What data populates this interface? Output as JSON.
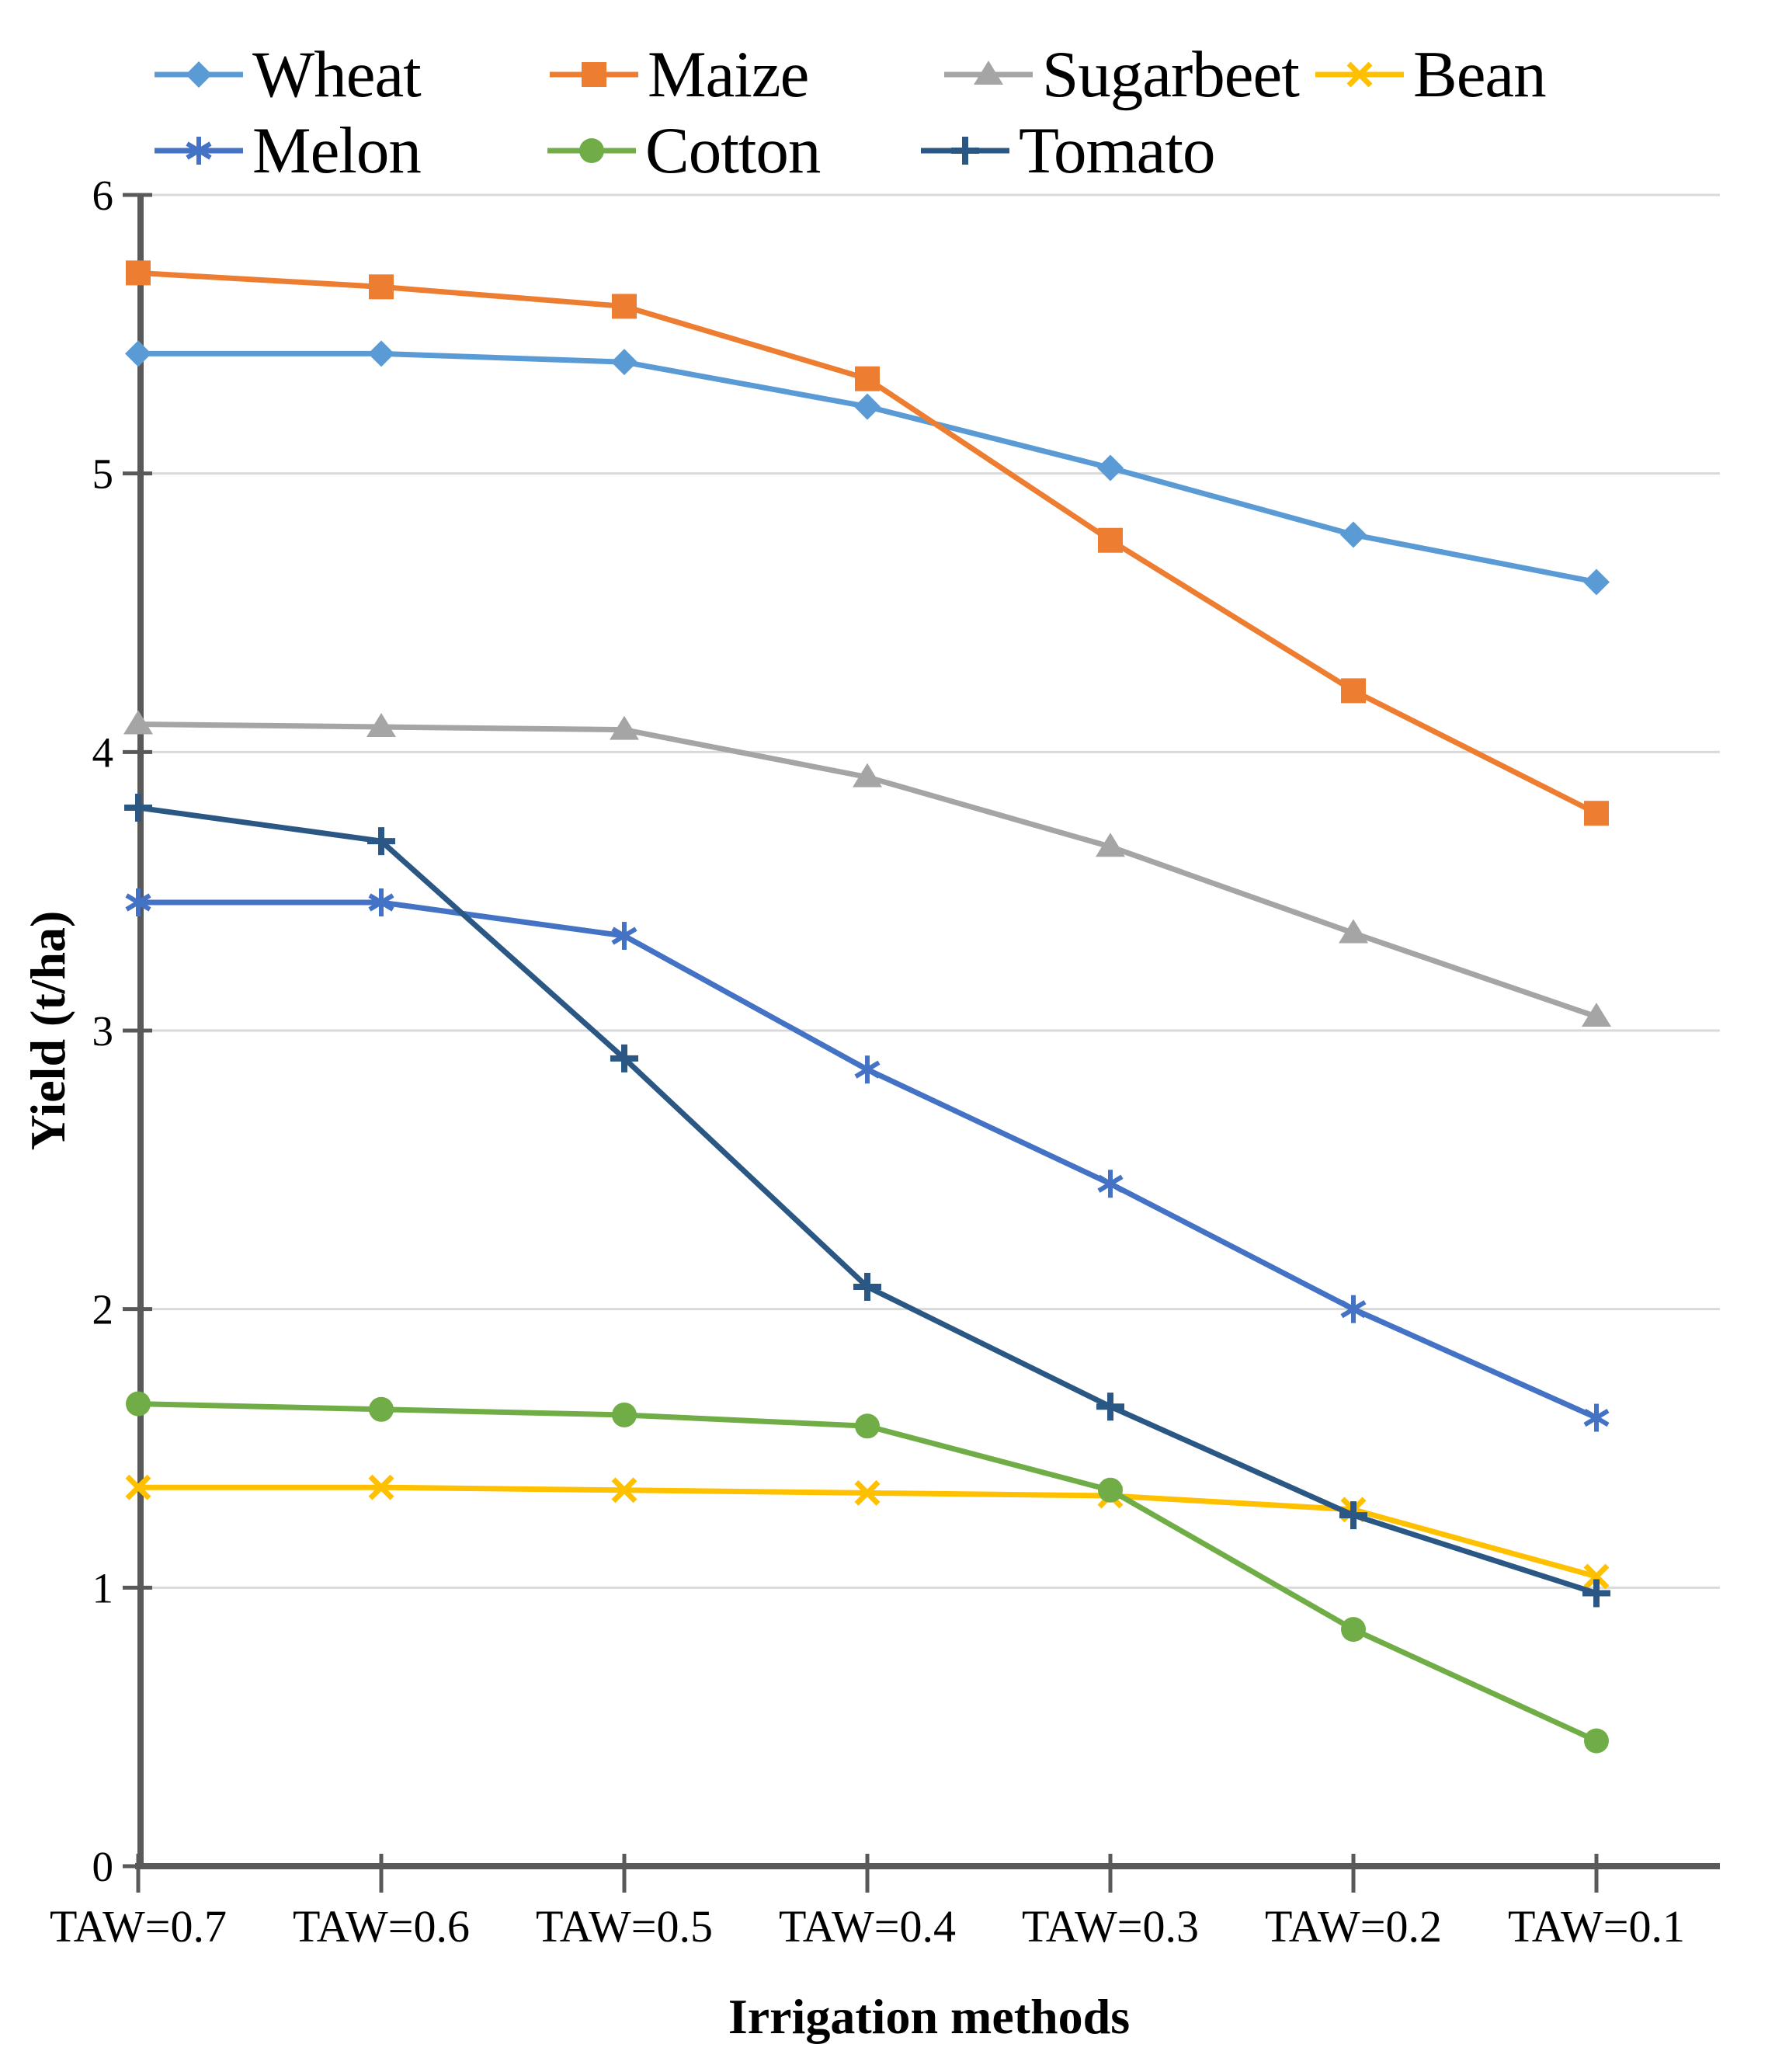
{
  "page": {
    "background": "#FFFFFF"
  },
  "chart_data": {
    "type": "line",
    "title": "",
    "xlabel": "Irrigation methods",
    "ylabel": "Yield (t/ha)",
    "categories": [
      "TAW=0.7",
      "TAW=0.6",
      "TAW=0.5",
      "TAW=0.4",
      "TAW=0.3",
      "TAW=0.2",
      "TAW=0.1"
    ],
    "ylim": [
      0,
      6
    ],
    "ytick_labels": [
      "0",
      "1",
      "2",
      "3",
      "4",
      "5",
      "6"
    ],
    "grid": "horizontal",
    "legend_position": "top-left-two-rows",
    "legend_rows": [
      [
        "Wheat",
        "Maize",
        "Sugarbeet",
        "Bean"
      ],
      [
        "Melon",
        "Cotton",
        "Tomato"
      ]
    ],
    "series": [
      {
        "name": "Wheat",
        "color": "#5B9BD5",
        "marker": "diamond",
        "values": [
          5.43,
          5.43,
          5.4,
          5.24,
          5.02,
          4.78,
          4.61
        ]
      },
      {
        "name": "Maize",
        "color": "#ED7D31",
        "marker": "square",
        "values": [
          5.72,
          5.67,
          5.6,
          5.34,
          4.76,
          4.22,
          3.78
        ]
      },
      {
        "name": "Sugarbeet",
        "color": "#A5A5A5",
        "marker": "triangle",
        "values": [
          4.1,
          4.09,
          4.08,
          3.91,
          3.66,
          3.35,
          3.05
        ]
      },
      {
        "name": "Bean",
        "color": "#FFC000",
        "marker": "x",
        "values": [
          1.36,
          1.36,
          1.35,
          1.34,
          1.33,
          1.28,
          1.04
        ]
      },
      {
        "name": "Melon",
        "color": "#4472C4",
        "marker": "asterisk",
        "values": [
          3.46,
          3.46,
          3.34,
          2.86,
          2.45,
          2.0,
          1.61
        ]
      },
      {
        "name": "Cotton",
        "color": "#70AD47",
        "marker": "circle",
        "values": [
          1.66,
          1.64,
          1.62,
          1.58,
          1.35,
          0.85,
          0.45
        ]
      },
      {
        "name": "Tomato",
        "color": "#2A5783",
        "marker": "plus",
        "values": [
          3.8,
          3.68,
          2.9,
          2.08,
          1.65,
          1.26,
          0.98
        ]
      }
    ],
    "axis_color": "#595959",
    "gridline_color": "#D9D9D9",
    "text_color": "#000000"
  }
}
